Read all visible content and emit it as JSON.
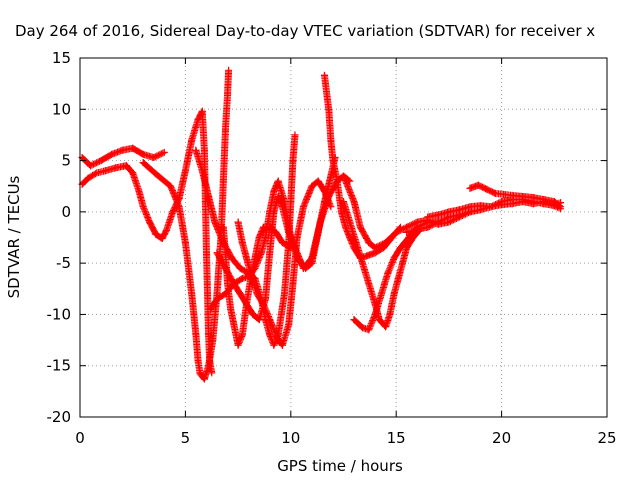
{
  "chart_data": {
    "type": "scatter",
    "title": "Day 264 of 2016, Sidereal Day-to-day VTEC variation (SDTVAR) for receiver x",
    "xlabel": "GPS time / hours",
    "ylabel": "SDTVAR / TECUs",
    "xlim": [
      0,
      25
    ],
    "ylim": [
      -20,
      15
    ],
    "x_ticks": [
      "0",
      "5",
      "10",
      "15",
      "20",
      "25"
    ],
    "y_ticks": [
      "-20",
      "-15",
      "-10",
      "-5",
      "0",
      "5",
      "10",
      "15"
    ],
    "grid": true,
    "marker": "+",
    "color": "#ff0000",
    "series": [
      {
        "points": [
          [
            0.1,
            5.3
          ],
          [
            0.5,
            4.5
          ],
          [
            1.0,
            5.0
          ],
          [
            1.5,
            5.6
          ],
          [
            2.0,
            6.0
          ],
          [
            2.5,
            6.2
          ],
          [
            3.0,
            5.6
          ],
          [
            3.5,
            5.3
          ],
          [
            4.0,
            5.8
          ]
        ]
      },
      {
        "points": [
          [
            0.1,
            2.7
          ],
          [
            0.4,
            3.3
          ],
          [
            0.8,
            3.8
          ],
          [
            1.2,
            4.0
          ],
          [
            1.7,
            4.3
          ],
          [
            2.2,
            4.5
          ],
          [
            2.5,
            3.8
          ],
          [
            2.8,
            2.0
          ],
          [
            3.0,
            0.5
          ],
          [
            3.3,
            -1.0
          ],
          [
            3.6,
            -2.2
          ],
          [
            3.9,
            -2.6
          ],
          [
            4.1,
            -1.8
          ],
          [
            4.4,
            0.0
          ],
          [
            4.7,
            1.3
          ]
        ]
      },
      {
        "points": [
          [
            4.7,
            1.3
          ],
          [
            5.0,
            4.0
          ],
          [
            5.3,
            7.0
          ],
          [
            5.6,
            9.0
          ],
          [
            5.8,
            9.8
          ],
          [
            5.9,
            6.0
          ],
          [
            5.95,
            1.0
          ],
          [
            6.0,
            -4.0
          ],
          [
            6.05,
            -8.0
          ],
          [
            6.1,
            -12.0
          ],
          [
            6.15,
            -14.5
          ],
          [
            6.25,
            -15.7
          ]
        ]
      },
      {
        "points": [
          [
            3.0,
            4.8
          ],
          [
            3.6,
            3.7
          ],
          [
            4.3,
            2.5
          ],
          [
            4.7,
            0.5
          ],
          [
            5.0,
            -3.0
          ],
          [
            5.3,
            -8.0
          ],
          [
            5.5,
            -12.0
          ],
          [
            5.6,
            -14.5
          ],
          [
            5.7,
            -15.8
          ],
          [
            5.9,
            -16.3
          ],
          [
            6.1,
            -15.0
          ],
          [
            6.3,
            -12.5
          ],
          [
            6.5,
            -8.0
          ],
          [
            6.7,
            -2.0
          ],
          [
            6.8,
            3.0
          ],
          [
            6.9,
            8.0
          ],
          [
            7.0,
            11.5
          ],
          [
            7.05,
            13.8
          ]
        ]
      },
      {
        "points": [
          [
            5.5,
            6.0
          ],
          [
            5.8,
            4.0
          ],
          [
            6.1,
            1.5
          ],
          [
            6.4,
            -1.0
          ],
          [
            6.8,
            -3.0
          ],
          [
            7.2,
            -4.5
          ],
          [
            7.6,
            -5.5
          ],
          [
            8.0,
            -6.0
          ],
          [
            8.3,
            -6.5
          ],
          [
            8.6,
            -8.5
          ],
          [
            8.8,
            -10.5
          ],
          [
            9.0,
            -12.0
          ],
          [
            9.2,
            -13.0
          ],
          [
            9.4,
            -12.0
          ],
          [
            9.7,
            -8.0
          ],
          [
            9.9,
            -3.0
          ],
          [
            10.0,
            1.0
          ],
          [
            10.1,
            5.0
          ],
          [
            10.2,
            7.5
          ]
        ]
      },
      {
        "points": [
          [
            6.2,
            -9.5
          ],
          [
            6.5,
            -8.5
          ],
          [
            6.9,
            -8.0
          ],
          [
            7.3,
            -7.0
          ],
          [
            7.7,
            -6.5
          ],
          [
            8.0,
            -6.3
          ],
          [
            8.3,
            -5.5
          ],
          [
            8.6,
            -4.0
          ],
          [
            8.8,
            -2.5
          ],
          [
            9.0,
            0.0
          ],
          [
            9.2,
            2.0
          ],
          [
            9.4,
            3.0
          ],
          [
            9.7,
            1.0
          ],
          [
            10.0,
            -2.5
          ],
          [
            10.3,
            -4.5
          ],
          [
            10.7,
            -5.5
          ],
          [
            11.0,
            -5.0
          ],
          [
            11.3,
            -2.0
          ],
          [
            11.6,
            1.0
          ],
          [
            11.9,
            3.5
          ],
          [
            12.1,
            5.3
          ]
        ]
      },
      {
        "points": [
          [
            6.5,
            -4.0
          ],
          [
            6.9,
            -5.5
          ],
          [
            7.3,
            -7.0
          ],
          [
            7.6,
            -8.0
          ],
          [
            7.9,
            -9.0
          ],
          [
            8.2,
            -10.0
          ],
          [
            8.5,
            -10.5
          ],
          [
            8.8,
            -8.5
          ],
          [
            9.0,
            -4.0
          ],
          [
            9.2,
            0.0
          ],
          [
            9.4,
            1.5
          ],
          [
            9.6,
            0.5
          ],
          [
            9.9,
            -2.0
          ],
          [
            10.2,
            -3.5
          ],
          [
            10.6,
            -5.5
          ],
          [
            11.0,
            -4.5
          ],
          [
            11.4,
            -1.0
          ],
          [
            11.8,
            1.5
          ],
          [
            12.2,
            3.0
          ],
          [
            12.5,
            3.5
          ],
          [
            12.8,
            3.0
          ]
        ]
      },
      {
        "points": [
          [
            7.5,
            -1.0
          ],
          [
            7.7,
            -3.0
          ],
          [
            7.9,
            -4.5
          ],
          [
            8.1,
            -6.0
          ],
          [
            8.4,
            -8.0
          ],
          [
            8.7,
            -9.0
          ],
          [
            9.0,
            -10.5
          ],
          [
            9.4,
            -12.5
          ],
          [
            9.6,
            -13.0
          ],
          [
            9.9,
            -11.0
          ],
          [
            10.1,
            -7.0
          ],
          [
            10.3,
            -2.5
          ],
          [
            10.6,
            0.5
          ],
          [
            11.0,
            2.5
          ],
          [
            11.3,
            3.0
          ],
          [
            11.6,
            2.0
          ],
          [
            11.9,
            0.5
          ]
        ]
      },
      {
        "points": [
          [
            6.8,
            -1.5
          ],
          [
            6.9,
            -4.0
          ],
          [
            7.0,
            -7.0
          ],
          [
            7.15,
            -9.5
          ],
          [
            7.3,
            -11.0
          ],
          [
            7.5,
            -13.0
          ],
          [
            7.7,
            -12.0
          ],
          [
            7.9,
            -9.0
          ],
          [
            8.1,
            -6.5
          ],
          [
            8.3,
            -4.5
          ],
          [
            8.5,
            -2.5
          ],
          [
            8.7,
            -1.5
          ],
          [
            9.0,
            -1.5
          ],
          [
            9.3,
            -2.0
          ],
          [
            9.6,
            -3.0
          ],
          [
            10.0,
            -3.5
          ]
        ]
      },
      {
        "points": [
          [
            11.6,
            13.3
          ],
          [
            11.8,
            10.0
          ],
          [
            11.9,
            7.0
          ],
          [
            12.0,
            5.0
          ],
          [
            12.2,
            3.0
          ],
          [
            12.4,
            0.0
          ],
          [
            12.6,
            -1.5
          ],
          [
            12.8,
            -2.5
          ],
          [
            13.0,
            -3.5
          ],
          [
            13.3,
            -4.5
          ],
          [
            13.6,
            -4.3
          ],
          [
            14.0,
            -4.0
          ],
          [
            14.4,
            -3.5
          ],
          [
            14.8,
            -2.5
          ],
          [
            15.2,
            -1.5
          ]
        ]
      },
      {
        "points": [
          [
            12.5,
            1.0
          ],
          [
            12.8,
            -1.0
          ],
          [
            13.1,
            -3.0
          ],
          [
            13.4,
            -5.0
          ],
          [
            13.7,
            -7.0
          ],
          [
            14.0,
            -9.0
          ],
          [
            14.2,
            -10.5
          ],
          [
            14.5,
            -11.2
          ],
          [
            14.7,
            -10.0
          ],
          [
            14.9,
            -8.0
          ],
          [
            15.1,
            -6.5
          ],
          [
            15.3,
            -5.0
          ],
          [
            15.5,
            -3.5
          ],
          [
            15.8,
            -2.5
          ],
          [
            16.1,
            -1.8
          ]
        ]
      },
      {
        "points": [
          [
            13.0,
            -10.5
          ],
          [
            13.4,
            -11.3
          ],
          [
            13.7,
            -11.5
          ],
          [
            14.0,
            -10.0
          ],
          [
            14.3,
            -8.0
          ],
          [
            14.6,
            -6.0
          ],
          [
            14.9,
            -4.5
          ],
          [
            15.2,
            -3.5
          ],
          [
            15.6,
            -2.5
          ],
          [
            16.0,
            -1.5
          ],
          [
            16.5,
            -1.0
          ],
          [
            17.0,
            -1.2
          ],
          [
            17.5,
            -1.0
          ],
          [
            18.0,
            -0.5
          ],
          [
            18.5,
            0.0
          ]
        ]
      },
      {
        "points": [
          [
            12.5,
            3.5
          ],
          [
            13.0,
            1.0
          ],
          [
            13.3,
            -1.5
          ],
          [
            13.7,
            -3.0
          ],
          [
            14.0,
            -3.5
          ],
          [
            14.5,
            -3.0
          ],
          [
            15.0,
            -2.0
          ],
          [
            15.5,
            -1.5
          ],
          [
            16.0,
            -1.0
          ],
          [
            16.5,
            -0.8
          ],
          [
            17.0,
            -1.0
          ]
        ]
      },
      {
        "points": [
          [
            15.5,
            -2.0
          ],
          [
            16.0,
            -1.7
          ],
          [
            16.5,
            -1.5
          ],
          [
            17.0,
            -1.0
          ],
          [
            17.5,
            -0.5
          ],
          [
            18.0,
            -0.3
          ],
          [
            18.5,
            0.0
          ],
          [
            19.0,
            0.2
          ],
          [
            19.5,
            0.5
          ],
          [
            20.0,
            1.0
          ],
          [
            20.5,
            1.2
          ],
          [
            21.0,
            1.2
          ],
          [
            21.5,
            1.0
          ],
          [
            22.0,
            0.8
          ],
          [
            22.5,
            0.6
          ],
          [
            22.8,
            0.3
          ]
        ]
      },
      {
        "points": [
          [
            16.5,
            -0.5
          ],
          [
            17.0,
            -0.3
          ],
          [
            17.5,
            0.0
          ],
          [
            18.0,
            0.2
          ],
          [
            18.5,
            0.5
          ],
          [
            19.0,
            0.6
          ],
          [
            19.5,
            0.5
          ],
          [
            20.0,
            0.7
          ],
          [
            20.5,
            0.8
          ],
          [
            21.0,
            1.0
          ],
          [
            21.5,
            0.8
          ],
          [
            22.0,
            1.0
          ],
          [
            22.5,
            0.7
          ],
          [
            22.8,
            0.9
          ]
        ]
      },
      {
        "points": [
          [
            18.5,
            2.3
          ],
          [
            18.9,
            2.6
          ],
          [
            19.3,
            2.2
          ],
          [
            19.7,
            1.8
          ],
          [
            20.1,
            1.7
          ],
          [
            20.5,
            1.6
          ],
          [
            21.0,
            1.5
          ],
          [
            21.5,
            1.4
          ],
          [
            22.0,
            1.2
          ],
          [
            22.5,
            1.0
          ],
          [
            22.8,
            0.5
          ]
        ]
      }
    ]
  }
}
